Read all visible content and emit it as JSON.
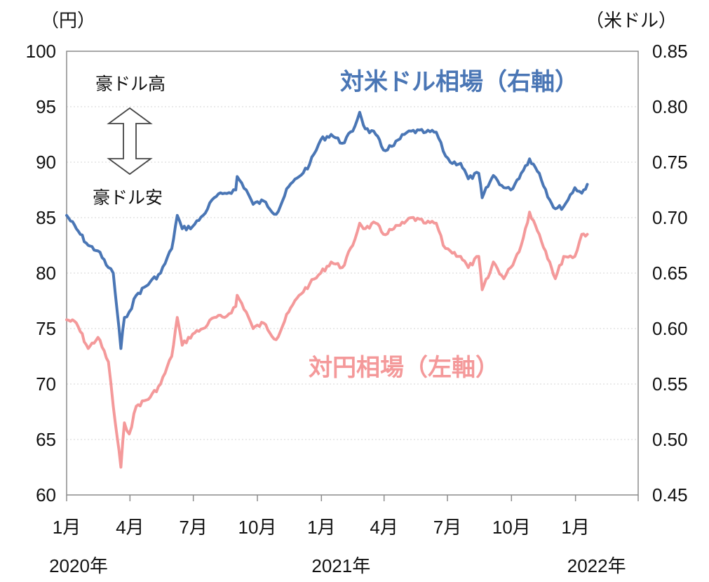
{
  "chart_data": {
    "type": "line",
    "title": "",
    "left_axis": {
      "unit": "（円）",
      "min": 60,
      "max": 100,
      "ticks": [
        "60",
        "65",
        "70",
        "75",
        "80",
        "85",
        "90",
        "95",
        "100"
      ]
    },
    "right_axis": {
      "unit": "（米ドル）",
      "min": 0.45,
      "max": 0.85,
      "ticks": [
        "0.45",
        "0.50",
        "0.55",
        "0.60",
        "0.65",
        "0.70",
        "0.75",
        "0.80",
        "0.85"
      ]
    },
    "x_months": [
      "1月",
      "4月",
      "7月",
      "10月",
      "1月",
      "4月",
      "7月",
      "10月",
      "1月"
    ],
    "x_years": [
      "2020年",
      "2021年",
      "2022年"
    ],
    "grid": "horizontal-dotted",
    "annotations": {
      "up": "豪ドル高",
      "down": "豪ドル安"
    },
    "series": [
      {
        "name": "対米ドル相場（右軸）",
        "axis": "right",
        "color": "#4a76b5",
        "x": [
          "2020-01-01",
          "2020-01-15",
          "2020-02-01",
          "2020-02-15",
          "2020-03-01",
          "2020-03-08",
          "2020-03-19",
          "2020-03-24",
          "2020-03-31",
          "2020-04-10",
          "2020-04-30",
          "2020-05-15",
          "2020-05-31",
          "2020-06-08",
          "2020-06-15",
          "2020-06-30",
          "2020-07-15",
          "2020-07-31",
          "2020-08-15",
          "2020-08-31",
          "2020-09-02",
          "2020-09-15",
          "2020-09-25",
          "2020-10-10",
          "2020-10-28",
          "2020-11-15",
          "2020-11-30",
          "2020-12-15",
          "2020-12-31",
          "2021-01-15",
          "2021-01-31",
          "2021-02-15",
          "2021-02-25",
          "2021-03-05",
          "2021-03-20",
          "2021-03-31",
          "2021-04-15",
          "2021-04-30",
          "2021-05-10",
          "2021-05-31",
          "2021-06-15",
          "2021-06-25",
          "2021-07-05",
          "2021-07-20",
          "2021-07-31",
          "2021-08-15",
          "2021-08-20",
          "2021-08-31",
          "2021-09-05",
          "2021-09-20",
          "2021-09-30",
          "2021-10-15",
          "2021-10-27",
          "2021-11-10",
          "2021-11-25",
          "2021-12-03",
          "2021-12-15",
          "2021-12-31",
          "2022-01-10",
          "2022-01-18"
        ],
        "values": [
          0.702,
          0.69,
          0.675,
          0.67,
          0.655,
          0.65,
          0.582,
          0.61,
          0.615,
          0.63,
          0.642,
          0.65,
          0.672,
          0.702,
          0.69,
          0.692,
          0.702,
          0.718,
          0.722,
          0.725,
          0.737,
          0.725,
          0.712,
          0.715,
          0.703,
          0.728,
          0.737,
          0.748,
          0.77,
          0.775,
          0.767,
          0.778,
          0.795,
          0.78,
          0.775,
          0.761,
          0.765,
          0.775,
          0.778,
          0.777,
          0.777,
          0.76,
          0.75,
          0.749,
          0.735,
          0.74,
          0.718,
          0.732,
          0.738,
          0.727,
          0.725,
          0.74,
          0.753,
          0.74,
          0.716,
          0.708,
          0.71,
          0.727,
          0.722,
          0.73
        ]
      },
      {
        "name": "対円相場（左軸）",
        "axis": "left",
        "color": "#f4999a",
        "x": [
          "2020-01-01",
          "2020-01-15",
          "2020-02-01",
          "2020-02-15",
          "2020-03-01",
          "2020-03-08",
          "2020-03-19",
          "2020-03-24",
          "2020-03-31",
          "2020-04-10",
          "2020-04-30",
          "2020-05-15",
          "2020-05-31",
          "2020-06-08",
          "2020-06-15",
          "2020-06-30",
          "2020-07-15",
          "2020-07-31",
          "2020-08-15",
          "2020-08-31",
          "2020-09-02",
          "2020-09-15",
          "2020-09-25",
          "2020-10-10",
          "2020-10-28",
          "2020-11-15",
          "2020-11-30",
          "2020-12-15",
          "2020-12-31",
          "2021-01-15",
          "2021-01-31",
          "2021-02-15",
          "2021-02-25",
          "2021-03-05",
          "2021-03-20",
          "2021-03-31",
          "2021-04-15",
          "2021-04-30",
          "2021-05-10",
          "2021-05-31",
          "2021-06-15",
          "2021-06-25",
          "2021-07-05",
          "2021-07-20",
          "2021-07-31",
          "2021-08-15",
          "2021-08-20",
          "2021-08-31",
          "2021-09-05",
          "2021-09-20",
          "2021-09-30",
          "2021-10-15",
          "2021-10-27",
          "2021-11-10",
          "2021-11-25",
          "2021-12-03",
          "2021-12-15",
          "2021-12-31",
          "2022-01-10",
          "2022-01-18"
        ],
        "values": [
          75.8,
          75.5,
          73.2,
          74.2,
          72.0,
          68.0,
          62.5,
          66.5,
          65.5,
          68.0,
          68.8,
          70.0,
          72.5,
          76.0,
          73.5,
          74.5,
          75.0,
          76.0,
          76.0,
          77.0,
          78.0,
          76.5,
          75.0,
          75.5,
          74.0,
          76.5,
          78.0,
          79.0,
          80.0,
          81.0,
          80.5,
          82.5,
          84.5,
          84.0,
          84.5,
          83.5,
          84.0,
          84.5,
          85.0,
          84.5,
          84.5,
          82.5,
          82.0,
          81.5,
          80.5,
          81.5,
          78.5,
          80.0,
          81.0,
          79.5,
          80.5,
          82.5,
          85.5,
          83.5,
          81.0,
          79.5,
          81.5,
          81.5,
          83.5,
          83.5
        ]
      }
    ]
  }
}
